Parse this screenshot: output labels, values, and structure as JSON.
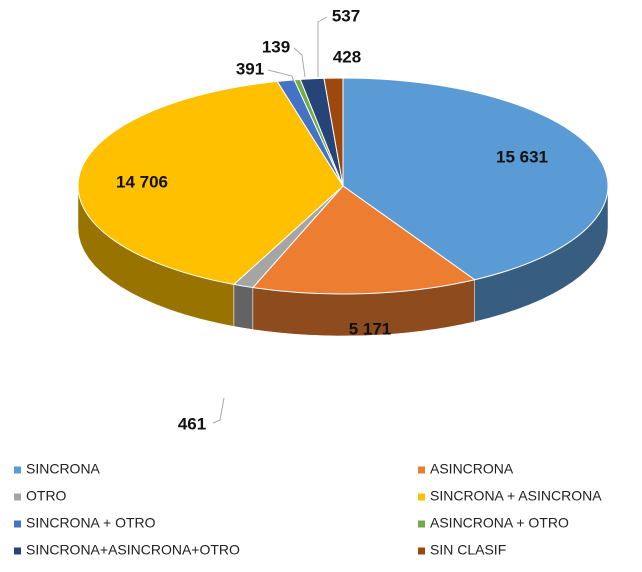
{
  "chart_data": {
    "type": "pie",
    "categories": [
      "SINCRONA",
      "ASINCRONA",
      "OTRO",
      "SINCRONA + ASINCRONA",
      "SINCRONA + OTRO",
      "ASINCRONA + OTRO",
      "SINCRONA+ASINCRONA+OTRO",
      "SIN CLASIF"
    ],
    "values": [
      15631,
      5171,
      461,
      14706,
      391,
      139,
      537,
      428
    ],
    "value_labels": [
      "15 631",
      "5 171",
      "461",
      "14 706",
      "391",
      "139",
      "537",
      "428"
    ],
    "colors": [
      "#5b9bd5",
      "#ed7d31",
      "#a5a5a5",
      "#ffc000",
      "#4472c4",
      "#70ad47",
      "#264478",
      "#9e480e"
    ],
    "legend": "bottom"
  }
}
